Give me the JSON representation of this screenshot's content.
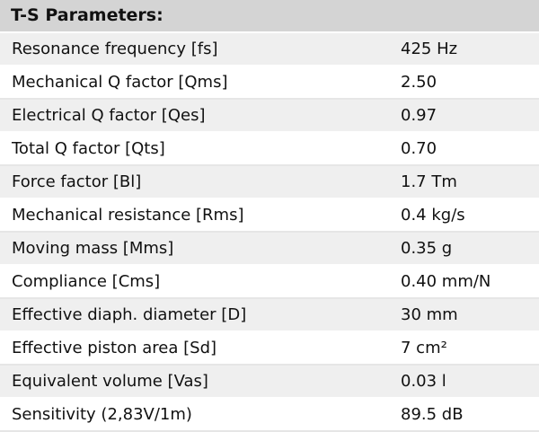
{
  "header": {
    "title": "T-S Parameters:"
  },
  "table": {
    "rows": [
      [
        "Resonance frequency [fs]",
        "425 Hz"
      ],
      [
        "Mechanical Q factor [Qms]",
        "2.50"
      ],
      [
        "Electrical Q factor [Qes]",
        "0.97"
      ],
      [
        "Total Q factor [Qts]",
        "0.70"
      ],
      [
        "Force factor [Bl]",
        "1.7 Tm"
      ],
      [
        "Mechanical resistance [Rms]",
        "0.4 kg/s"
      ],
      [
        "Moving mass [Mms]",
        "0.35 g"
      ],
      [
        "Compliance [Cms]",
        "0.40 mm/N"
      ],
      [
        "Effective diaph. diameter [D]",
        "30 mm"
      ],
      [
        "Effective piston area [Sd]",
        "7 cm²"
      ],
      [
        "Equivalent volume [Vas]",
        "0.03 l"
      ],
      [
        "Sensitivity (2,83V/1m)",
        "89.5 dB"
      ]
    ]
  }
}
